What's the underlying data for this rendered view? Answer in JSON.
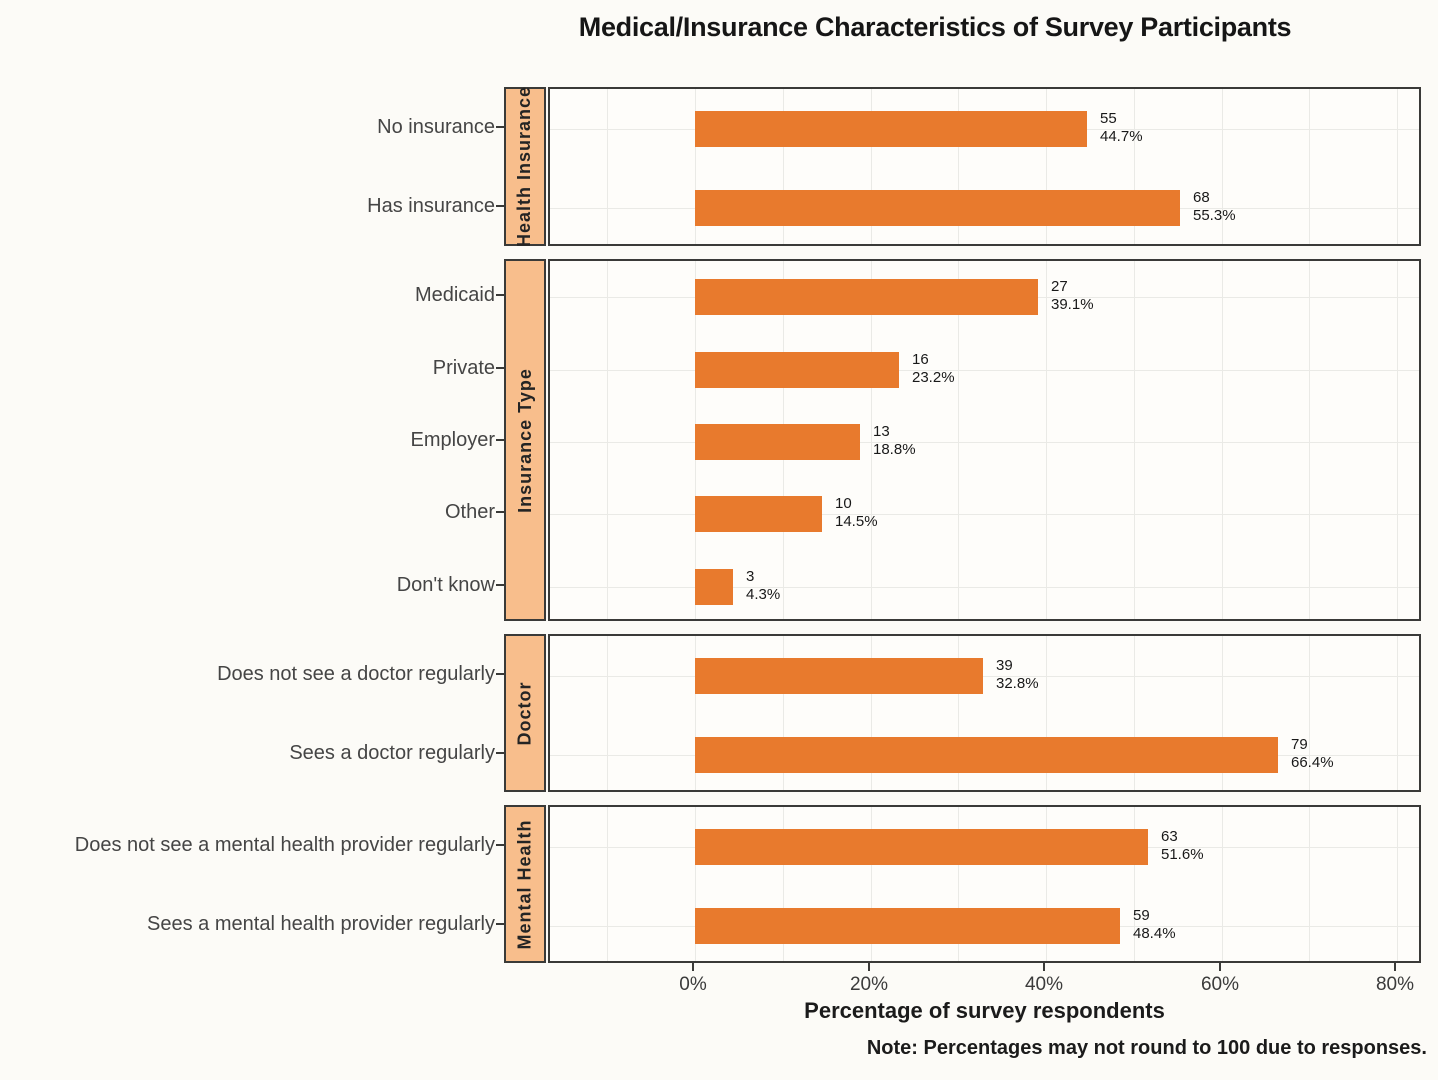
{
  "colors": {
    "bar": "#E87A2D",
    "strip_bg": "#F8BE8C",
    "border": "#3A3A38",
    "grid": "#EAEAE6",
    "panel_bg": "#FEFDFA",
    "page_bg": "#FCFBF7"
  },
  "chart_data": {
    "type": "bar",
    "orientation": "horizontal",
    "title": "Medical/Insurance Characteristics of Survey Participants",
    "xlabel": "Percentage of survey respondents",
    "note": "Note: Percentages may not round to 100 due to responses.",
    "legend": "none",
    "grid": "on",
    "xlim_pct": [
      -16.5,
      83
    ],
    "grid_pcts": [
      -10,
      0,
      10,
      20,
      30,
      40,
      50,
      60,
      70,
      80
    ],
    "x_ticks": [
      {
        "pct": 0,
        "label": "0%"
      },
      {
        "pct": 20,
        "label": "20%"
      },
      {
        "pct": 40,
        "label": "40%"
      },
      {
        "pct": 60,
        "label": "60%"
      },
      {
        "pct": 80,
        "label": "80%"
      }
    ],
    "facets": [
      {
        "name": "Health Insurance",
        "rows": [
          {
            "label": "No insurance",
            "count": 55,
            "pct": 44.7,
            "pct_label": "44.7%"
          },
          {
            "label": "Has insurance",
            "count": 68,
            "pct": 55.3,
            "pct_label": "55.3%"
          }
        ]
      },
      {
        "name": "Insurance Type",
        "rows": [
          {
            "label": "Medicaid",
            "count": 27,
            "pct": 39.1,
            "pct_label": "39.1%"
          },
          {
            "label": "Private",
            "count": 16,
            "pct": 23.2,
            "pct_label": "23.2%"
          },
          {
            "label": "Employer",
            "count": 13,
            "pct": 18.8,
            "pct_label": "18.8%"
          },
          {
            "label": "Other",
            "count": 10,
            "pct": 14.5,
            "pct_label": "14.5%"
          },
          {
            "label": "Don't know",
            "count": 3,
            "pct": 4.3,
            "pct_label": "4.3%"
          }
        ]
      },
      {
        "name": "Doctor",
        "rows": [
          {
            "label": "Does not see a doctor regularly",
            "count": 39,
            "pct": 32.8,
            "pct_label": "32.8%"
          },
          {
            "label": "Sees a doctor regularly",
            "count": 79,
            "pct": 66.4,
            "pct_label": "66.4%"
          }
        ]
      },
      {
        "name": "Mental Health",
        "rows": [
          {
            "label": "Does not see a mental health provider regularly",
            "count": 63,
            "pct": 51.6,
            "pct_label": "51.6%"
          },
          {
            "label": "Sees a mental health provider regularly",
            "count": 59,
            "pct": 48.4,
            "pct_label": "48.4%"
          }
        ]
      }
    ]
  }
}
